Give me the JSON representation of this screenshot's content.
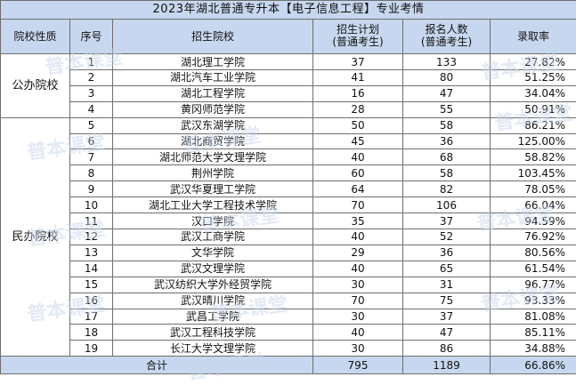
{
  "title": "2023年湖北普通专升本【电子信息工程】专业考情",
  "headers": {
    "type": "院校性质",
    "no": "序号",
    "school": "招生院校",
    "plan_line1": "招生计划",
    "plan_line2": "(普通考生)",
    "applicants_line1": "报名人数",
    "applicants_line2": "(普通考生)",
    "rate": "录取率"
  },
  "groups": {
    "public": "公办院校",
    "private": "民办院校"
  },
  "rows": [
    {
      "no": "1",
      "school": "湖北理工学院",
      "plan": "37",
      "applicants": "133",
      "rate": "27.82%"
    },
    {
      "no": "2",
      "school": "湖北汽车工业学院",
      "plan": "41",
      "applicants": "80",
      "rate": "51.25%"
    },
    {
      "no": "3",
      "school": "湖北工程学院",
      "plan": "16",
      "applicants": "47",
      "rate": "34.04%"
    },
    {
      "no": "4",
      "school": "黄冈师范学院",
      "plan": "28",
      "applicants": "55",
      "rate": "50.91%"
    },
    {
      "no": "5",
      "school": "武汉东湖学院",
      "plan": "50",
      "applicants": "58",
      "rate": "86.21%"
    },
    {
      "no": "6",
      "school": "湖北商贸学院",
      "plan": "45",
      "applicants": "36",
      "rate": "125.00%"
    },
    {
      "no": "7",
      "school": "湖北师范大学文理学院",
      "plan": "40",
      "applicants": "68",
      "rate": "58.82%"
    },
    {
      "no": "8",
      "school": "荆州学院",
      "plan": "60",
      "applicants": "58",
      "rate": "103.45%"
    },
    {
      "no": "9",
      "school": "武汉华夏理工学院",
      "plan": "64",
      "applicants": "82",
      "rate": "78.05%"
    },
    {
      "no": "10",
      "school": "湖北工业大学工程技术学院",
      "plan": "70",
      "applicants": "106",
      "rate": "66.04%"
    },
    {
      "no": "11",
      "school": "汉口学院",
      "plan": "35",
      "applicants": "37",
      "rate": "94.59%"
    },
    {
      "no": "12",
      "school": "武汉工商学院",
      "plan": "40",
      "applicants": "52",
      "rate": "76.92%"
    },
    {
      "no": "13",
      "school": "文华学院",
      "plan": "29",
      "applicants": "36",
      "rate": "80.56%"
    },
    {
      "no": "14",
      "school": "武汉文理学院",
      "plan": "40",
      "applicants": "65",
      "rate": "61.54%"
    },
    {
      "no": "15",
      "school": "武汉纺织大学外经贸学院",
      "plan": "30",
      "applicants": "31",
      "rate": "96.77%"
    },
    {
      "no": "16",
      "school": "武汉晴川学院",
      "plan": "70",
      "applicants": "75",
      "rate": "93.33%"
    },
    {
      "no": "17",
      "school": "武昌工学院",
      "plan": "30",
      "applicants": "37",
      "rate": "81.08%"
    },
    {
      "no": "18",
      "school": "武汉工程科技学院",
      "plan": "40",
      "applicants": "47",
      "rate": "85.11%"
    },
    {
      "no": "19",
      "school": "长江大学文理学院",
      "plan": "30",
      "applicants": "86",
      "rate": "34.88%"
    }
  ],
  "total": {
    "label": "合计",
    "plan": "795",
    "applicants": "1189",
    "rate": "66.86%"
  },
  "watermark": "普本课堂"
}
